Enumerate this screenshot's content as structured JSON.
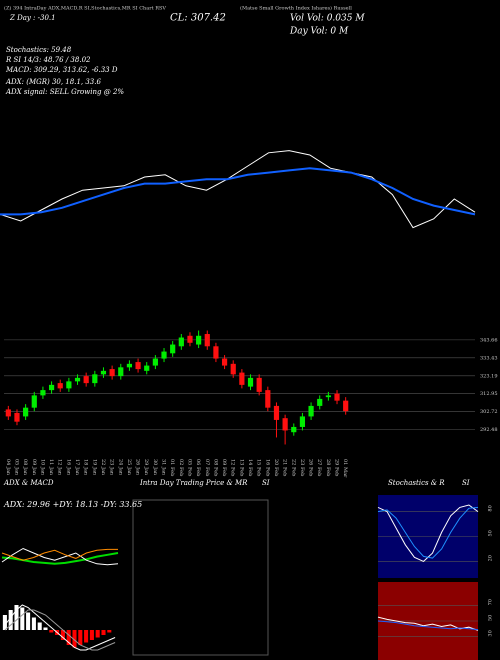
{
  "header": {
    "lines": [
      "(Z) 394 IntraDay ADX,MACD,R SI,Stochastics,MR SI Chart RSV",
      "Z Day : -30.1",
      "CL: 307.42",
      "Vol Vol: 0.035 M",
      "Day Vol: 0 M",
      "(Matse Small Growth Index Ishares) Russell",
      "Stochastics: 59.48",
      "R SI 14/3: 48.76 / 38.02",
      "MACD: 309.29, 313.62, -6.33 D",
      "ADX: (MGR) 30, 18.1, 33.6",
      "ADX signal: SELL Growing @ 2%"
    ],
    "intraday_title": "Intra Day Trading Price & MR",
    "intraday_title2": "SI"
  },
  "chart_data": [
    {
      "type": "line",
      "ylim": [
        0,
        100
      ],
      "series": [
        {
          "color": "#ffffff",
          "values": [
            48,
            45,
            50,
            55,
            59,
            60,
            61,
            65,
            66,
            61,
            59,
            64,
            70,
            76,
            77,
            75,
            69,
            67,
            65,
            57,
            42,
            46,
            55,
            49
          ]
        },
        {
          "color": "#1060ff",
          "values": [
            48,
            48,
            49,
            51,
            54,
            57,
            60,
            62,
            62,
            63,
            64,
            64,
            66,
            67,
            68,
            69,
            68,
            67,
            64,
            60,
            55,
            52,
            50,
            48
          ]
        }
      ]
    },
    {
      "type": "candlestick",
      "ylim": [
        278,
        355
      ],
      "yticks": [
        343.66,
        333.43,
        323.19,
        312.95,
        302.72,
        292.48
      ],
      "categories": [
        "04 Jan",
        "05 Jan",
        "08 Jan",
        "09 Jan",
        "10 Jan",
        "11 Jan",
        "12 Jan",
        "16 Jan",
        "17 Jan",
        "18 Jan",
        "19 Jan",
        "22 Jan",
        "23 Jan",
        "24 Jan",
        "25 Jan",
        "26 Jan",
        "29 Jan",
        "30 Jan",
        "31 Jan",
        "01 Feb",
        "02 Feb",
        "05 Feb",
        "06 Feb",
        "07 Feb",
        "08 Feb",
        "09 Feb",
        "12 Feb",
        "13 Feb",
        "14 Feb",
        "15 Feb",
        "16 Feb",
        "20 Feb",
        "21 Feb",
        "22 Feb",
        "23 Feb",
        "26 Feb",
        "27 Feb",
        "28 Feb",
        "29 Feb",
        "01 Mar"
      ],
      "open": [
        304,
        302,
        300,
        305,
        312,
        315,
        319,
        316,
        320,
        323,
        319,
        324,
        327,
        323,
        328,
        331,
        326,
        329,
        333,
        336,
        340,
        346,
        341,
        347,
        340,
        333,
        330,
        325,
        317,
        322,
        315,
        306,
        299,
        291,
        294,
        300,
        306,
        311,
        313,
        309
      ],
      "high": [
        306,
        304,
        307,
        314,
        317,
        320,
        321,
        322,
        324,
        325,
        326,
        328,
        329,
        330,
        332,
        333,
        331,
        335,
        339,
        343,
        347,
        348,
        349,
        349,
        342,
        335,
        332,
        327,
        324,
        324,
        317,
        308,
        301,
        296,
        302,
        308,
        312,
        314,
        315,
        311
      ],
      "low": [
        298,
        295,
        298,
        303,
        310,
        313,
        314,
        314,
        318,
        317,
        317,
        322,
        321,
        321,
        326,
        325,
        324,
        327,
        331,
        334,
        338,
        340,
        339,
        338,
        331,
        327,
        322,
        316,
        315,
        312,
        303,
        288,
        284,
        289,
        292,
        298,
        304,
        309,
        307,
        301
      ],
      "close": [
        300,
        297,
        305,
        312,
        315,
        318,
        316,
        320,
        322,
        319,
        324,
        326,
        323,
        328,
        330,
        327,
        329,
        333,
        337,
        341,
        345,
        342,
        346,
        340,
        333,
        329,
        324,
        318,
        322,
        314,
        305,
        298,
        292,
        294,
        300,
        306,
        310,
        312,
        309,
        303
      ],
      "up_color": "#00ee00",
      "down_color": "#ff1010"
    },
    {
      "type": "line",
      "title": "ADX & MACD",
      "label": "ADX: 29.96 +DY: 18.13 -DY: 33.65",
      "ylim": [
        0,
        50
      ],
      "series": [
        {
          "color": "#00dd00",
          "values": [
            25,
            24,
            22,
            20,
            19,
            18,
            19,
            21,
            23,
            26,
            28,
            30
          ]
        },
        {
          "color": "#ffffff",
          "values": [
            20,
            28,
            35,
            30,
            25,
            22,
            26,
            30,
            22,
            18,
            17,
            18
          ]
        },
        {
          "color": "#ff8c00",
          "values": [
            30,
            26,
            22,
            25,
            30,
            33,
            28,
            24,
            30,
            33,
            34,
            34
          ]
        }
      ]
    },
    {
      "type": "combo",
      "ylim": [
        -12,
        14
      ],
      "series": [
        {
          "kind": "bar",
          "color": "#ffffff",
          "negative_color": "#ff0000",
          "values": [
            6,
            8,
            10,
            9,
            7,
            5,
            3,
            1,
            -1,
            -2,
            -4,
            -6,
            -7,
            -6,
            -5,
            -4,
            -3,
            -2,
            -1,
            0
          ]
        },
        {
          "kind": "line",
          "color": "#ffffff",
          "values": [
            2,
            5,
            8,
            10,
            9,
            7,
            5,
            3,
            1,
            -1,
            -3,
            -5,
            -7,
            -8,
            -8,
            -7,
            -6,
            -5,
            -4,
            -3
          ]
        },
        {
          "kind": "line",
          "color": "#999999",
          "values": [
            0,
            2,
            4,
            6,
            8,
            8,
            7,
            6,
            4,
            2,
            0,
            -2,
            -4,
            -6,
            -7,
            -8,
            -8,
            -7,
            -6,
            -5
          ]
        }
      ]
    },
    {
      "type": "line",
      "title": "Stochastics & R",
      "title2": "SI",
      "background": "#00006a",
      "ylim": [
        0,
        100
      ],
      "yticks": [
        80,
        50,
        20
      ],
      "series": [
        {
          "color": "#ffffff",
          "values": [
            85,
            80,
            60,
            40,
            25,
            20,
            30,
            55,
            75,
            85,
            88,
            80
          ]
        },
        {
          "color": "#1e90ff",
          "values": [
            80,
            82,
            72,
            55,
            38,
            26,
            24,
            35,
            55,
            72,
            84,
            85
          ]
        }
      ]
    },
    {
      "type": "line",
      "background": "#8b0000",
      "ylim": [
        0,
        100
      ],
      "yticks": [
        70,
        50,
        30
      ],
      "series": [
        {
          "color": "#ffffff",
          "values": [
            55,
            52,
            50,
            48,
            47,
            44,
            46,
            43,
            45,
            40,
            42,
            38
          ]
        },
        {
          "color": "#1e5fff",
          "values": [
            50,
            49,
            48,
            46,
            44,
            43,
            42,
            41,
            40,
            41,
            40,
            39
          ]
        }
      ]
    }
  ]
}
